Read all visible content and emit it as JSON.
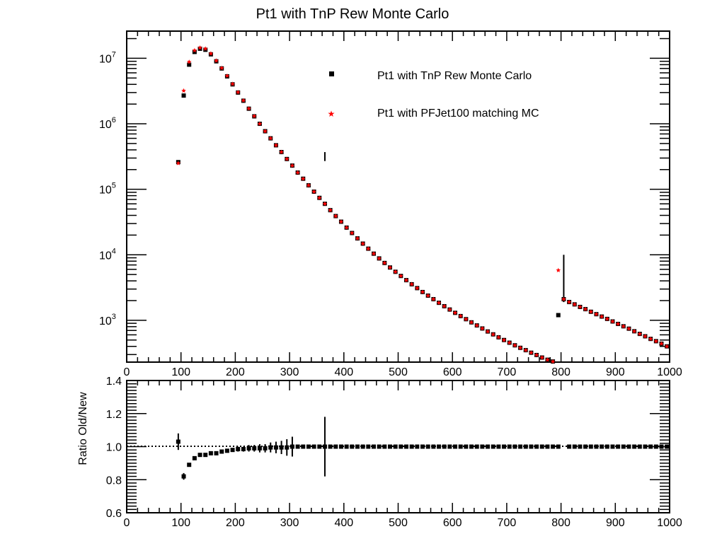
{
  "chart_data": {
    "title": "Pt1 with TnP Rew Monte Carlo",
    "legend": {
      "placement": "top-right",
      "entries": [
        {
          "label": "Pt1 with TnP Rew Monte Carlo",
          "color": "#000000",
          "marker": "square"
        },
        {
          "label": "Pt1 with PFJet100 matching MC",
          "color": "#ff0000",
          "marker": "star"
        }
      ]
    },
    "panels": [
      {
        "id": "top",
        "type": "scatter",
        "log_y": true,
        "xlim": [
          0,
          1000
        ],
        "ylim": [
          230,
          26000000
        ],
        "ylabel": "",
        "x_tick_labels": [
          "0",
          "100",
          "200",
          "300",
          "400",
          "500",
          "600",
          "700",
          "800",
          "900",
          "1000"
        ],
        "y_tick_labels": [
          {
            "value": 1000,
            "base": "10",
            "exp": "3"
          },
          {
            "value": 10000,
            "base": "10",
            "exp": "4"
          },
          {
            "value": 100000,
            "base": "10",
            "exp": "5"
          },
          {
            "value": 1000000,
            "base": "10",
            "exp": "6"
          },
          {
            "value": 10000000,
            "base": "10",
            "exp": "7"
          }
        ],
        "series": [
          {
            "name": "Pt1 with TnP Rew Monte Carlo",
            "color": "#000000",
            "marker": "square",
            "x": [
              95,
              105,
              115,
              125,
              135,
              145,
              155,
              165,
              175,
              185,
              195,
              205,
              215,
              225,
              235,
              245,
              255,
              265,
              275,
              285,
              295,
              305,
              315,
              325,
              335,
              345,
              355,
              365,
              375,
              385,
              395,
              405,
              415,
              425,
              435,
              445,
              455,
              465,
              475,
              485,
              495,
              505,
              515,
              525,
              535,
              545,
              555,
              565,
              575,
              585,
              595,
              605,
              615,
              625,
              635,
              645,
              655,
              665,
              675,
              685,
              695,
              705,
              715,
              725,
              735,
              745,
              755,
              765,
              775,
              785,
              795,
              805,
              815,
              825,
              835,
              845,
              855,
              865,
              875,
              885,
              895,
              905,
              915,
              925,
              935,
              945,
              955,
              965,
              975,
              985,
              995
            ],
            "y": [
              260000,
              2700000,
              8000000,
              12500000,
              14000000,
              13500000,
              11500000,
              9000000,
              7000000,
              5300000,
              4000000,
              3000000,
              2250000,
              1700000,
              1300000,
              1000000,
              770000,
              600000,
              470000,
              370000,
              290000,
              230000,
              180000,
              145000,
              115000,
              92000,
              74000,
              60000,
              48000,
              39000,
              32000,
              26000,
              21500,
              17800,
              14800,
              12400,
              10400,
              8800,
              7500,
              6400,
              5500,
              4750,
              4100,
              3550,
              3100,
              2700,
              2380,
              2100,
              1850,
              1640,
              1460,
              1300,
              1160,
              1040,
              930,
              835,
              750,
              675,
              610,
              550,
              500,
              455,
              415,
              380,
              350,
              320,
              295,
              270,
              250,
              235,
              1200,
              2100,
              1900,
              1750,
              1600,
              1480,
              1350,
              1240,
              1140,
              1050,
              960,
              880,
              810,
              745,
              680,
              620,
              570,
              520,
              480,
              440,
              400
            ]
          },
          {
            "name": "Pt1 with PFJet100 matching MC",
            "color": "#ff0000",
            "marker": "star",
            "x": [
              95,
              105,
              115,
              125,
              135,
              145,
              155,
              165,
              175,
              185,
              195,
              205,
              215,
              225,
              235,
              245,
              255,
              265,
              275,
              285,
              295,
              305,
              315,
              325,
              335,
              345,
              355,
              365,
              375,
              385,
              395,
              405,
              415,
              425,
              435,
              445,
              455,
              465,
              475,
              485,
              495,
              505,
              515,
              525,
              535,
              545,
              555,
              565,
              575,
              585,
              595,
              605,
              615,
              625,
              635,
              645,
              655,
              665,
              675,
              685,
              695,
              705,
              715,
              725,
              735,
              745,
              755,
              765,
              775,
              785,
              795,
              805,
              815,
              825,
              835,
              845,
              855,
              865,
              875,
              885,
              895,
              905,
              915,
              925,
              935,
              945,
              955,
              965,
              975,
              985,
              995
            ],
            "y": [
              250000,
              3200000,
              8800000,
              13200000,
              14500000,
              14000000,
              11800000,
              9200000,
              7100000,
              5400000,
              4050000,
              3030000,
              2270000,
              1710000,
              1310000,
              1000000,
              770000,
              600000,
              470000,
              370000,
              290000,
              230000,
              180000,
              145000,
              115000,
              92000,
              74000,
              60000,
              48000,
              39000,
              32000,
              26000,
              21500,
              17800,
              14800,
              12400,
              10400,
              8800,
              7500,
              6400,
              5500,
              4750,
              4100,
              3550,
              3100,
              2700,
              2380,
              2100,
              1850,
              1640,
              1460,
              1300,
              1160,
              1040,
              930,
              835,
              750,
              675,
              610,
              550,
              500,
              455,
              415,
              380,
              350,
              320,
              295,
              270,
              250,
              235,
              5800,
              2100,
              1900,
              1750,
              1600,
              1480,
              1350,
              1240,
              1140,
              1050,
              960,
              880,
              810,
              745,
              680,
              620,
              570,
              520,
              480,
              440,
              400
            ]
          }
        ],
        "error_bars": [
          {
            "x": 365,
            "low": 270000,
            "high": 370000
          },
          {
            "x": 805,
            "low": 1900,
            "high": 10000
          }
        ]
      },
      {
        "id": "ratio",
        "type": "scatter",
        "log_y": false,
        "xlim": [
          0,
          1000
        ],
        "ylim": [
          0.6,
          1.4
        ],
        "ylabel": "Ratio Old/New",
        "x_tick_labels": [
          "0",
          "100",
          "200",
          "300",
          "400",
          "500",
          "600",
          "700",
          "800",
          "900",
          "1000"
        ],
        "y_tick_labels": [
          "0.6",
          "0.8",
          "1.0",
          "1.2",
          "1.4"
        ],
        "reference_line": 1.0,
        "series": [
          {
            "name": "",
            "color": "#000000",
            "marker": "square",
            "x": [
              95,
              105,
              115,
              125,
              135,
              145,
              155,
              165,
              175,
              185,
              195,
              205,
              215,
              225,
              235,
              245,
              255,
              265,
              275,
              285,
              295,
              305,
              315,
              325,
              335,
              345,
              355,
              365,
              375,
              385,
              395,
              405,
              415,
              425,
              435,
              445,
              455,
              465,
              475,
              485,
              495,
              505,
              515,
              525,
              535,
              545,
              555,
              565,
              575,
              585,
              595,
              605,
              615,
              625,
              635,
              645,
              655,
              665,
              675,
              685,
              695,
              705,
              715,
              725,
              735,
              745,
              755,
              765,
              775,
              785,
              795,
              815,
              825,
              835,
              845,
              855,
              865,
              875,
              885,
              895,
              905,
              915,
              925,
              935,
              945,
              955,
              965,
              975,
              985,
              995
            ],
            "y": [
              1.03,
              0.82,
              0.89,
              0.93,
              0.95,
              0.95,
              0.96,
              0.96,
              0.97,
              0.975,
              0.98,
              0.985,
              0.985,
              0.99,
              0.99,
              0.99,
              0.99,
              0.995,
              0.995,
              0.995,
              0.995,
              1.0,
              1.0,
              1.0,
              1.0,
              1.0,
              1.0,
              1.0,
              1.0,
              1.0,
              1.0,
              1.0,
              1.0,
              1.0,
              1.0,
              1.0,
              1.0,
              1.0,
              1.0,
              1.0,
              1.0,
              1.0,
              1.0,
              1.0,
              1.0,
              1.0,
              1.0,
              1.0,
              1.0,
              1.0,
              1.0,
              1.0,
              1.0,
              1.0,
              1.0,
              1.0,
              1.0,
              1.0,
              1.0,
              1.0,
              1.0,
              1.0,
              1.0,
              1.0,
              1.0,
              1.0,
              1.0,
              1.0,
              1.0,
              1.0,
              1.0,
              1.0,
              1.0,
              1.0,
              1.0,
              1.0,
              1.0,
              1.0,
              1.0,
              1.0,
              1.0,
              1.0,
              1.0,
              1.0,
              1.0,
              1.0,
              1.0,
              1.0,
              1.0,
              1.0
            ],
            "err": [
              0.05,
              0.02,
              0.0,
              0.0,
              0.0,
              0.0,
              0.0,
              0.01,
              0.01,
              0.01,
              0.01,
              0.015,
              0.015,
              0.02,
              0.02,
              0.025,
              0.025,
              0.03,
              0.035,
              0.04,
              0.05,
              0.06,
              0.0,
              0.0,
              0.0,
              0.0,
              0.0,
              0.18,
              0.0,
              0.0,
              0.0,
              0.0,
              0.0,
              0.0,
              0.0,
              0.0,
              0.0,
              0.0,
              0.0,
              0.0,
              0.0,
              0.0,
              0.0,
              0.0,
              0.0,
              0.0,
              0.0,
              0.0,
              0.0,
              0.0,
              0.0,
              0.0,
              0.0,
              0.0,
              0.0,
              0.0,
              0.0,
              0.0,
              0.0,
              0.0,
              0.0,
              0.0,
              0.0,
              0.0,
              0.0,
              0.0,
              0.0,
              0.0,
              0.0,
              0.0,
              0.0,
              0.0,
              0.0,
              0.0,
              0.0,
              0.0,
              0.0,
              0.0,
              0.0,
              0.0,
              0.0,
              0.0,
              0.0,
              0.0,
              0.0,
              0.0,
              0.0,
              0.0,
              0.0,
              0.0
            ]
          }
        ]
      }
    ]
  }
}
